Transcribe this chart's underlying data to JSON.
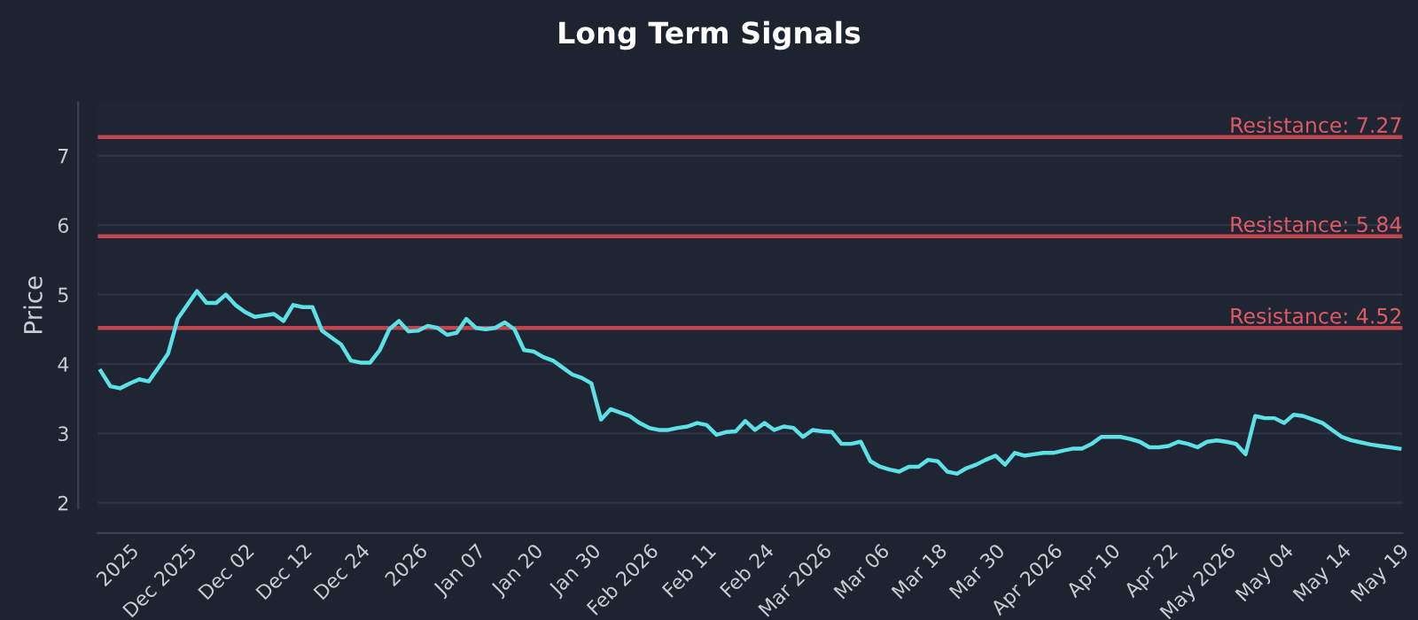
{
  "chart_data": {
    "type": "line",
    "title": "Long Term Signals",
    "ylabel": "Price",
    "categories": [
      null,
      null,
      null,
      "2025",
      null,
      null,
      null,
      null,
      null,
      "Dec 2025",
      null,
      null,
      null,
      null,
      null,
      "Dec 02",
      null,
      null,
      null,
      null,
      null,
      "Dec 12",
      null,
      null,
      null,
      null,
      null,
      "Dec 24",
      null,
      null,
      null,
      null,
      null,
      "2026",
      null,
      null,
      null,
      null,
      null,
      "Jan 07",
      null,
      null,
      null,
      null,
      null,
      "Jan 20",
      null,
      null,
      null,
      null,
      null,
      "Jan 30",
      null,
      null,
      null,
      null,
      null,
      "Feb 2026",
      null,
      null,
      null,
      null,
      null,
      "Feb 11",
      null,
      null,
      null,
      null,
      null,
      "Feb 24",
      null,
      null,
      null,
      null,
      null,
      "Mar 2026",
      null,
      null,
      null,
      null,
      null,
      "Mar 06",
      null,
      null,
      null,
      null,
      null,
      "Mar 18",
      null,
      null,
      null,
      null,
      null,
      "Mar 30",
      null,
      null,
      null,
      null,
      null,
      "Apr 2026",
      null,
      null,
      null,
      null,
      null,
      "Apr 10",
      null,
      null,
      null,
      null,
      null,
      "Apr 22",
      null,
      null,
      null,
      null,
      null,
      "May 2026",
      null,
      null,
      null,
      null,
      null,
      "May 04",
      null,
      null,
      null,
      null,
      null,
      "May 14",
      null,
      null,
      null,
      null,
      null,
      "May 19"
    ],
    "series": [
      {
        "color": "#5ce1e6",
        "values": [
          3.9,
          3.68,
          3.65,
          3.72,
          3.78,
          3.75,
          3.95,
          4.15,
          4.65,
          4.85,
          5.05,
          4.88,
          4.88,
          5.0,
          4.85,
          4.75,
          4.68,
          4.7,
          4.72,
          4.62,
          4.85,
          4.82,
          4.82,
          4.48,
          4.38,
          4.28,
          4.05,
          4.02,
          4.02,
          4.2,
          4.5,
          4.62,
          4.47,
          4.48,
          4.55,
          4.52,
          4.42,
          4.45,
          4.65,
          4.52,
          4.5,
          4.52,
          4.6,
          4.5,
          4.2,
          4.18,
          4.1,
          4.05,
          3.95,
          3.85,
          3.8,
          3.72,
          3.2,
          3.35,
          3.3,
          3.25,
          3.15,
          3.08,
          3.05,
          3.05,
          3.08,
          3.1,
          3.15,
          3.12,
          2.98,
          3.02,
          3.03,
          3.18,
          3.05,
          3.15,
          3.05,
          3.1,
          3.08,
          2.95,
          3.05,
          3.03,
          3.02,
          2.85,
          2.85,
          2.88,
          2.6,
          2.52,
          2.48,
          2.45,
          2.52,
          2.52,
          2.62,
          2.6,
          2.45,
          2.42,
          2.5,
          2.55,
          2.62,
          2.68,
          2.55,
          2.72,
          2.68,
          2.7,
          2.72,
          2.72,
          2.75,
          2.78,
          2.78,
          2.85,
          2.95,
          2.95,
          2.95,
          2.92,
          2.88,
          2.8,
          2.8,
          2.82,
          2.88,
          2.85,
          2.8,
          2.88,
          2.9,
          2.88,
          2.85,
          2.7,
          3.25,
          3.22,
          3.22,
          3.15,
          3.27,
          3.25,
          3.2,
          3.15,
          3.05,
          2.95,
          2.9,
          2.87,
          2.84,
          2.82,
          2.8,
          2.78
        ]
      }
    ],
    "ylim": [
      1.92,
      7.77
    ],
    "yticks": [
      2,
      3,
      4,
      5,
      6,
      7
    ],
    "grid": "y",
    "marker": "none",
    "line_style": "solid",
    "ref_lines": [
      {
        "axis": "y",
        "value": 7.27,
        "label": "Resistance: 7.27",
        "color": "#c0454f"
      },
      {
        "axis": "y",
        "value": 5.84,
        "label": "Resistance: 5.84",
        "color": "#c0454f"
      },
      {
        "axis": "y",
        "value": 4.52,
        "label": "Resistance: 4.52",
        "color": "#c0454f"
      }
    ]
  }
}
